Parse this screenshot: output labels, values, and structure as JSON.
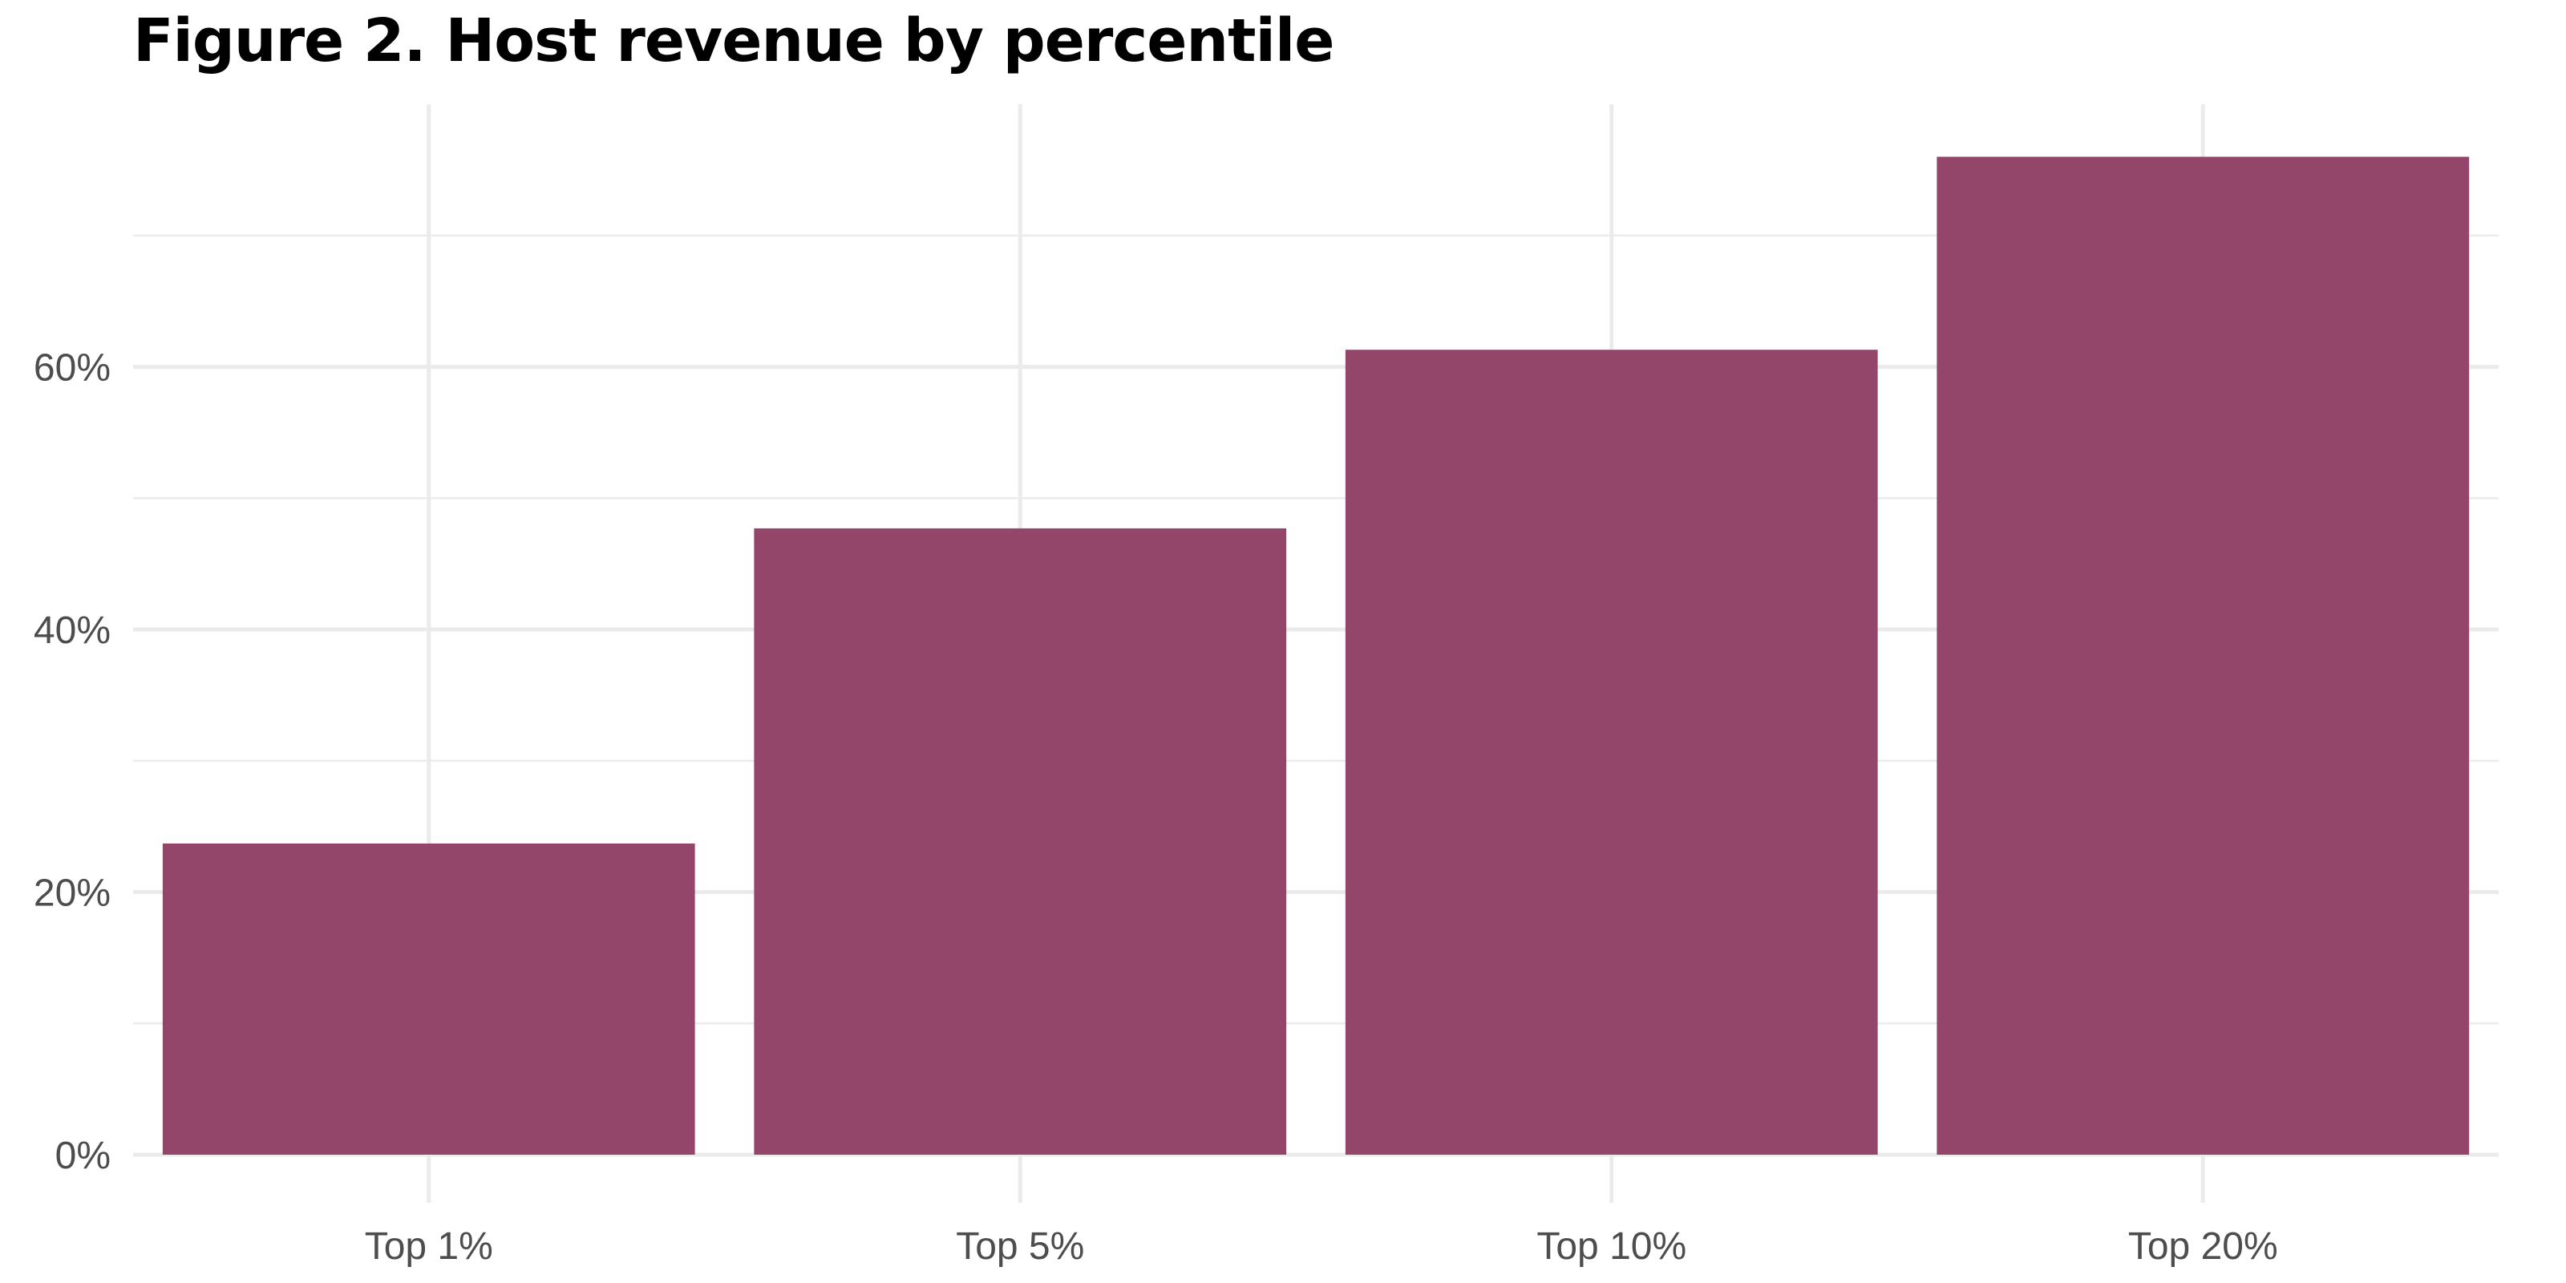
{
  "chart_data": {
    "type": "bar",
    "title": "Figure 2. Host revenue by percentile",
    "xlabel": "",
    "ylabel": "",
    "categories": [
      "Top 1%",
      "Top 5%",
      "Top 10%",
      "Top 20%"
    ],
    "values": [
      23.7,
      47.7,
      61.3,
      76.0
    ],
    "ylim": [
      0,
      80
    ],
    "yticks": [
      0,
      20,
      40,
      60
    ],
    "ytick_labels": [
      "0%",
      "20%",
      "40%",
      "60%"
    ],
    "grid": true,
    "legend": "none",
    "bar_color": "#93456A",
    "grid_color": "#EBEBEB"
  }
}
